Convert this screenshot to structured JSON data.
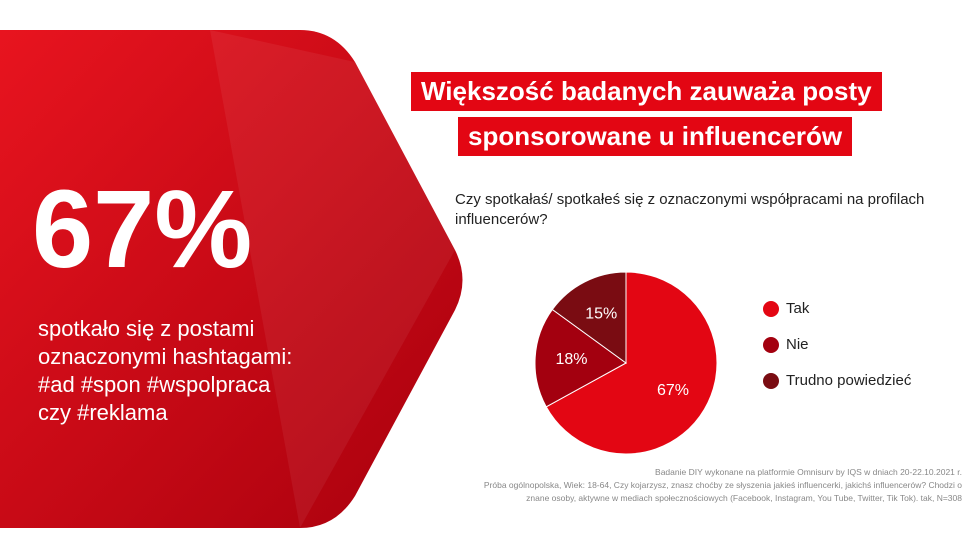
{
  "hero": {
    "figure": "67%",
    "lines": [
      "spotkało się z postami",
      "oznaczonymi hashtagami:",
      "#ad #spon #wspolpraca",
      "czy #reklama"
    ]
  },
  "chart_data": {
    "type": "pie",
    "title": [
      "Większość badanych zauważa posty",
      "sponsorowane u influencerów"
    ],
    "subtitle": "Czy spotkałaś/ spotkałeś się z oznaczonymi współpracami na profilach influencerów?",
    "categories": [
      "Tak",
      "Nie",
      "Trudno powiedzieć"
    ],
    "values": [
      67,
      18,
      15
    ],
    "value_labels": [
      "67%",
      "18%",
      "15%"
    ],
    "colors": [
      "#e30613",
      "#a3000f",
      "#7a0c12"
    ]
  },
  "footnote": [
    "Badanie DIY wykonane na platformie Omnisurv by IQS w dniach 20-22.10.2021 r.",
    "Próba ogólnopolska, Wiek: 18-64, Czy kojarzysz, znasz choćby ze słyszenia jakieś influencerki, jakichś influencerów? Chodzi o",
    "znane osoby, aktywne w mediach społecznościowych (Facebook, Instagram, You Tube, Twitter, Tik Tok). tak, N=308"
  ]
}
